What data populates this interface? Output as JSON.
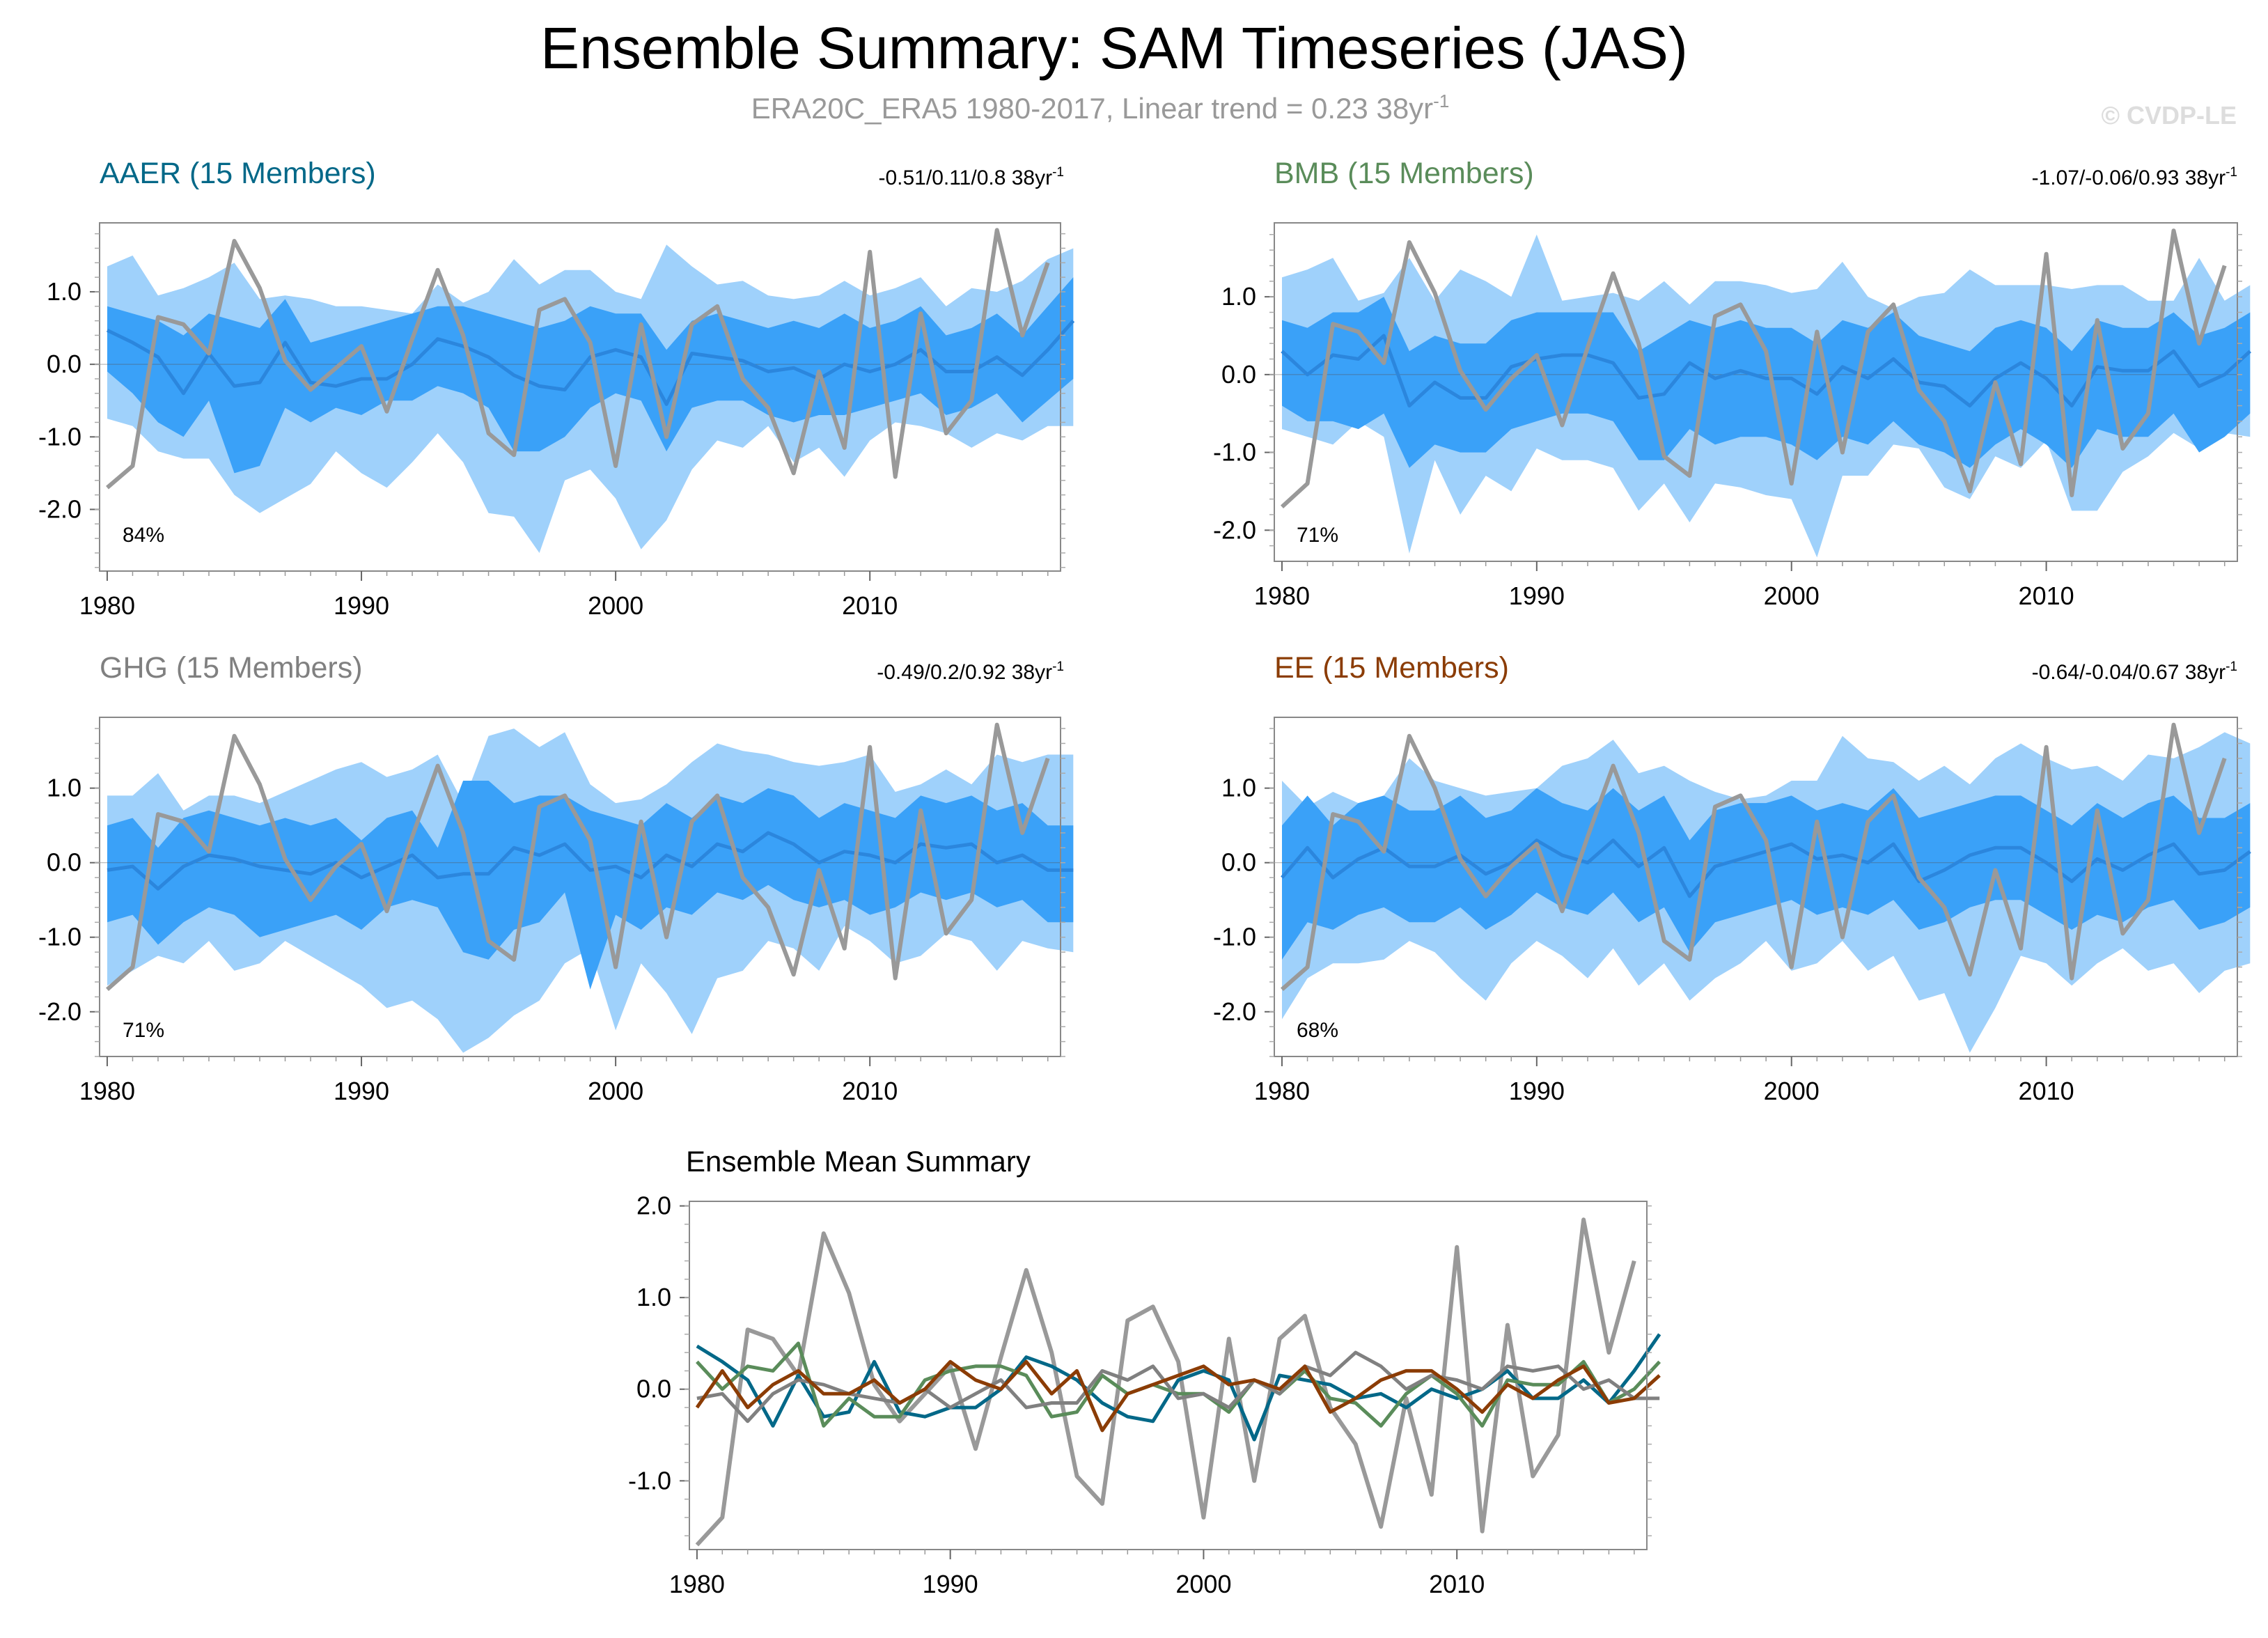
{
  "title": "Ensemble Summary: SAM Timeseries (JAS)",
  "subtitle": "ERA20C_ERA5 1980-2017, Linear trend = 0.23 38yr",
  "subtitle_sup": "-1",
  "watermark": "© CVDP-LE",
  "colors": {
    "outer_band": "#9fd1fb",
    "inner_band": "#3aa1f8",
    "ens_mean": "#2b86dd",
    "obs": "#999999",
    "AAER": "#036888",
    "BMB": "#5a8c5a",
    "GHG": "#808080",
    "EE": "#8b3c05"
  },
  "chart_data": [
    {
      "type": "area",
      "name": "AAER",
      "title": "AAER (15 Members)",
      "trend": "-0.51/0.11/0.8 38yr",
      "trend_sup": "-1",
      "percent": "84%",
      "xlim": [
        1979.7,
        2017.5
      ],
      "ylim": [
        -2.85,
        1.95
      ],
      "xticks": [
        "1980",
        "1990",
        "2000",
        "2010"
      ],
      "yticks": [
        "1.0",
        "0.0",
        "-1.0",
        "-2.0"
      ],
      "mean": [
        0.47,
        0.3,
        0.1,
        -0.4,
        0.15,
        -0.3,
        -0.25,
        0.3,
        -0.25,
        -0.3,
        -0.2,
        -0.2,
        0.0,
        0.35,
        0.25,
        0.1,
        -0.15,
        -0.3,
        -0.35,
        0.1,
        0.2,
        0.1,
        -0.55,
        0.15,
        0.1,
        0.05,
        -0.1,
        -0.05,
        -0.2,
        0.0,
        -0.1,
        0.0,
        0.2,
        -0.1,
        -0.1,
        0.1,
        -0.15,
        0.2,
        0.6
      ],
      "inner_lo": [
        -0.1,
        -0.4,
        -0.8,
        -1.0,
        -0.5,
        -1.5,
        -1.4,
        -0.6,
        -0.8,
        -0.6,
        -0.7,
        -0.5,
        -0.5,
        -0.3,
        -0.4,
        -0.6,
        -1.2,
        -1.2,
        -1.0,
        -0.6,
        -0.4,
        -0.5,
        -1.2,
        -0.6,
        -0.5,
        -0.5,
        -0.7,
        -0.8,
        -0.7,
        -0.7,
        -0.6,
        -0.5,
        -0.4,
        -0.7,
        -0.6,
        -0.4,
        -0.8,
        -0.5,
        -0.2
      ],
      "inner_hi": [
        0.8,
        0.7,
        0.6,
        0.4,
        0.7,
        0.6,
        0.5,
        0.9,
        0.3,
        0.4,
        0.5,
        0.6,
        0.7,
        0.8,
        0.8,
        0.7,
        0.6,
        0.5,
        0.6,
        0.8,
        0.7,
        0.7,
        0.2,
        0.6,
        0.7,
        0.6,
        0.5,
        0.6,
        0.5,
        0.7,
        0.5,
        0.6,
        0.8,
        0.4,
        0.5,
        0.7,
        0.4,
        0.8,
        1.2
      ],
      "outer_lo": [
        -0.75,
        -0.85,
        -1.2,
        -1.3,
        -1.3,
        -1.8,
        -2.05,
        -1.85,
        -1.65,
        -1.2,
        -1.5,
        -1.7,
        -1.35,
        -0.95,
        -1.35,
        -2.05,
        -2.1,
        -2.6,
        -1.6,
        -1.45,
        -1.85,
        -2.55,
        -2.15,
        -1.45,
        -1.05,
        -1.15,
        -0.85,
        -1.35,
        -1.15,
        -1.55,
        -1.05,
        -0.8,
        -0.85,
        -0.95,
        -1.15,
        -0.95,
        -1.05,
        -0.85,
        -0.85
      ],
      "outer_hi": [
        1.35,
        1.5,
        0.95,
        1.05,
        1.2,
        1.4,
        0.9,
        0.95,
        0.9,
        0.8,
        0.8,
        0.75,
        0.7,
        1.1,
        0.85,
        1.0,
        1.45,
        1.1,
        1.3,
        1.3,
        1.0,
        0.9,
        1.65,
        1.35,
        1.1,
        1.15,
        0.95,
        0.9,
        0.95,
        1.15,
        0.95,
        1.05,
        1.2,
        0.8,
        1.05,
        1.0,
        1.15,
        1.45,
        1.6
      ],
      "obs": [
        -1.7,
        -1.4,
        0.65,
        0.55,
        0.15,
        1.7,
        1.05,
        0.05,
        -0.35,
        -0.05,
        0.25,
        -0.65,
        0.35,
        1.3,
        0.4,
        -0.95,
        -1.25,
        0.75,
        0.9,
        0.3,
        -1.4,
        0.55,
        -1.0,
        0.55,
        0.8,
        -0.2,
        -0.6,
        -1.5,
        -0.1,
        -1.15,
        1.55,
        -1.55,
        0.7,
        -0.95,
        -0.5,
        1.85,
        0.4,
        1.4
      ]
    },
    {
      "type": "area",
      "name": "BMB",
      "title": "BMB (15 Members)",
      "trend": "-1.07/-0.06/0.93 38yr",
      "trend_sup": "-1",
      "percent": "71%",
      "xlim": [
        1979.7,
        2017.5
      ],
      "ylim": [
        -2.4,
        1.95
      ],
      "xticks": [
        "1980",
        "1990",
        "2000",
        "2010"
      ],
      "yticks": [
        "1.0",
        "0.0",
        "-1.0",
        "-2.0"
      ],
      "mean": [
        0.3,
        0.0,
        0.25,
        0.2,
        0.5,
        -0.4,
        -0.1,
        -0.3,
        -0.3,
        0.1,
        0.2,
        0.25,
        0.25,
        0.15,
        -0.3,
        -0.25,
        0.15,
        -0.05,
        0.05,
        -0.05,
        -0.05,
        -0.25,
        0.1,
        -0.05,
        0.2,
        -0.1,
        -0.15,
        -0.4,
        -0.05,
        0.15,
        -0.05,
        -0.4,
        0.1,
        0.05,
        0.05,
        0.3,
        -0.15,
        0.0,
        0.3
      ],
      "inner_lo": [
        -0.4,
        -0.6,
        -0.6,
        -0.7,
        -0.5,
        -1.2,
        -0.9,
        -1.0,
        -1.0,
        -0.7,
        -0.6,
        -0.5,
        -0.5,
        -0.6,
        -1.1,
        -1.1,
        -0.7,
        -0.9,
        -0.8,
        -0.8,
        -0.9,
        -1.1,
        -0.8,
        -0.9,
        -0.6,
        -0.9,
        -1.0,
        -1.2,
        -0.9,
        -0.7,
        -0.9,
        -1.2,
        -0.7,
        -0.8,
        -0.8,
        -0.5,
        -1.0,
        -0.8,
        -0.5
      ],
      "inner_hi": [
        0.7,
        0.6,
        0.8,
        0.8,
        1.0,
        0.3,
        0.5,
        0.4,
        0.4,
        0.7,
        0.8,
        0.8,
        0.8,
        0.8,
        0.3,
        0.5,
        0.7,
        0.6,
        0.7,
        0.6,
        0.6,
        0.4,
        0.7,
        0.6,
        0.8,
        0.5,
        0.4,
        0.3,
        0.6,
        0.7,
        0.6,
        0.3,
        0.7,
        0.6,
        0.6,
        0.8,
        0.5,
        0.6,
        0.8
      ],
      "outer_lo": [
        -0.7,
        -0.8,
        -0.9,
        -0.6,
        -0.8,
        -2.3,
        -1.1,
        -1.8,
        -1.3,
        -1.5,
        -0.95,
        -1.1,
        -1.1,
        -1.2,
        -1.75,
        -1.4,
        -1.9,
        -1.4,
        -1.45,
        -1.55,
        -1.6,
        -2.35,
        -1.3,
        -1.3,
        -0.9,
        -0.95,
        -1.45,
        -1.6,
        -1.05,
        -1.2,
        -0.85,
        -1.75,
        -1.75,
        -1.25,
        -1.05,
        -0.75,
        -0.95,
        -0.75,
        -0.8
      ],
      "outer_hi": [
        1.25,
        1.35,
        1.5,
        0.95,
        1.05,
        1.5,
        0.95,
        1.35,
        1.2,
        1.0,
        1.8,
        0.95,
        1.0,
        1.05,
        0.95,
        1.2,
        0.9,
        1.2,
        1.2,
        1.15,
        1.05,
        1.1,
        1.45,
        1.0,
        0.85,
        1.0,
        1.05,
        1.35,
        1.15,
        1.15,
        1.15,
        1.1,
        1.15,
        1.15,
        0.95,
        0.95,
        1.5,
        0.95,
        1.15
      ],
      "obs": [
        -1.7,
        -1.4,
        0.65,
        0.55,
        0.15,
        1.7,
        1.05,
        0.05,
        -0.45,
        -0.05,
        0.25,
        -0.65,
        0.35,
        1.3,
        0.4,
        -1.05,
        -1.3,
        0.75,
        0.9,
        0.3,
        -1.4,
        0.55,
        -1.0,
        0.55,
        0.9,
        -0.2,
        -0.6,
        -1.5,
        -0.1,
        -1.15,
        1.55,
        -1.55,
        0.7,
        -0.95,
        -0.5,
        1.85,
        0.4,
        1.4
      ]
    },
    {
      "type": "area",
      "name": "GHG",
      "title": "GHG (15 Members)",
      "trend": "-0.49/0.2/0.92 38yr",
      "trend_sup": "-1",
      "percent": "71%",
      "xlim": [
        1979.7,
        2017.5
      ],
      "ylim": [
        -2.6,
        1.95
      ],
      "xticks": [
        "1980",
        "1990",
        "2000",
        "2010"
      ],
      "yticks": [
        "1.0",
        "0.0",
        "-1.0",
        "-2.0"
      ],
      "mean": [
        -0.1,
        -0.05,
        -0.35,
        -0.05,
        0.1,
        0.05,
        -0.05,
        -0.1,
        -0.15,
        0.0,
        -0.2,
        -0.05,
        0.1,
        -0.2,
        -0.15,
        -0.15,
        0.2,
        0.1,
        0.25,
        -0.1,
        -0.05,
        -0.2,
        0.1,
        -0.05,
        0.25,
        0.15,
        0.4,
        0.25,
        0.0,
        0.15,
        0.1,
        0.0,
        0.25,
        0.2,
        0.25,
        0.0,
        0.1,
        -0.1,
        -0.1
      ],
      "inner_lo": [
        -0.8,
        -0.7,
        -1.1,
        -0.8,
        -0.6,
        -0.7,
        -1.0,
        -0.9,
        -0.8,
        -0.7,
        -0.9,
        -0.6,
        -0.5,
        -0.6,
        -1.2,
        -1.3,
        -0.9,
        -0.8,
        -0.4,
        -1.7,
        -0.7,
        -0.9,
        -0.6,
        -0.7,
        -0.4,
        -0.5,
        -0.3,
        -0.5,
        -0.6,
        -0.5,
        -0.7,
        -0.6,
        -0.4,
        -0.5,
        -0.4,
        -0.6,
        -0.5,
        -0.8,
        -0.8
      ],
      "inner_hi": [
        0.5,
        0.6,
        0.2,
        0.6,
        0.7,
        0.6,
        0.5,
        0.6,
        0.5,
        0.6,
        0.3,
        0.6,
        0.7,
        0.2,
        1.1,
        1.1,
        0.8,
        0.9,
        0.9,
        0.7,
        0.6,
        0.5,
        0.8,
        0.6,
        0.9,
        0.8,
        1.0,
        0.9,
        0.6,
        0.8,
        0.7,
        0.6,
        0.9,
        0.8,
        0.9,
        0.7,
        0.8,
        0.5,
        0.5
      ],
      "outer_lo": [
        -1.65,
        -1.45,
        -1.25,
        -1.35,
        -1.05,
        -1.45,
        -1.35,
        -1.05,
        -1.25,
        -1.45,
        -1.65,
        -1.95,
        -1.85,
        -2.1,
        -2.55,
        -2.35,
        -2.05,
        -1.85,
        -1.35,
        -1.15,
        -2.25,
        -1.35,
        -1.75,
        -2.3,
        -1.55,
        -1.45,
        -1.05,
        -1.15,
        -1.45,
        -0.85,
        -1.05,
        -1.35,
        -1.25,
        -0.95,
        -1.05,
        -1.45,
        -1.05,
        -1.15,
        -1.2
      ],
      "outer_hi": [
        0.9,
        0.9,
        1.2,
        0.7,
        0.9,
        0.9,
        0.8,
        0.95,
        1.1,
        1.25,
        1.35,
        1.15,
        1.25,
        1.45,
        0.8,
        1.7,
        1.8,
        1.55,
        1.75,
        1.05,
        0.8,
        0.85,
        1.05,
        1.35,
        1.6,
        1.5,
        1.45,
        1.35,
        1.3,
        1.35,
        1.45,
        0.95,
        1.05,
        1.25,
        1.05,
        1.45,
        1.35,
        1.45,
        1.45
      ],
      "obs": [
        -1.7,
        -1.4,
        0.65,
        0.55,
        0.15,
        1.7,
        1.05,
        0.05,
        -0.5,
        -0.05,
        0.25,
        -0.65,
        0.35,
        1.3,
        0.4,
        -1.05,
        -1.3,
        0.75,
        0.9,
        0.3,
        -1.4,
        0.55,
        -1.0,
        0.55,
        0.9,
        -0.2,
        -0.6,
        -1.5,
        -0.1,
        -1.15,
        1.55,
        -1.55,
        0.7,
        -0.95,
        -0.5,
        1.85,
        0.4,
        1.4
      ]
    },
    {
      "type": "area",
      "name": "EE",
      "title": "EE (15 Members)",
      "trend": "-0.64/-0.04/0.67 38yr",
      "trend_sup": "-1",
      "percent": "68%",
      "xlim": [
        1979.7,
        2017.5
      ],
      "ylim": [
        -2.6,
        1.95
      ],
      "xticks": [
        "1980",
        "1990",
        "2000",
        "2010"
      ],
      "yticks": [
        "1.0",
        "0.0",
        "-1.0",
        "-2.0"
      ],
      "mean": [
        -0.2,
        0.2,
        -0.2,
        0.05,
        0.2,
        -0.05,
        -0.05,
        0.1,
        -0.15,
        0.0,
        0.3,
        0.1,
        0.0,
        0.3,
        -0.05,
        0.2,
        -0.45,
        -0.05,
        0.05,
        0.15,
        0.25,
        0.05,
        0.1,
        0.0,
        0.25,
        -0.25,
        -0.1,
        0.1,
        0.2,
        0.2,
        0.0,
        -0.25,
        0.05,
        -0.1,
        0.1,
        0.25,
        -0.15,
        -0.1,
        0.15
      ],
      "inner_lo": [
        -1.3,
        -0.8,
        -0.9,
        -0.7,
        -0.6,
        -0.8,
        -0.8,
        -0.6,
        -0.9,
        -0.7,
        -0.4,
        -0.6,
        -0.7,
        -0.4,
        -0.8,
        -0.6,
        -1.2,
        -0.8,
        -0.7,
        -0.6,
        -0.5,
        -0.7,
        -0.6,
        -0.7,
        -0.5,
        -0.9,
        -0.8,
        -0.6,
        -0.5,
        -0.5,
        -0.7,
        -0.9,
        -0.7,
        -0.8,
        -0.6,
        -0.5,
        -0.9,
        -0.8,
        -0.6
      ],
      "inner_hi": [
        0.5,
        0.9,
        0.5,
        0.8,
        0.9,
        0.7,
        0.7,
        0.9,
        0.6,
        0.7,
        1.0,
        0.8,
        0.7,
        1.0,
        0.7,
        0.9,
        0.3,
        0.7,
        0.8,
        0.8,
        0.9,
        0.7,
        0.8,
        0.7,
        1.0,
        0.6,
        0.7,
        0.8,
        0.9,
        0.9,
        0.7,
        0.5,
        0.8,
        0.6,
        0.8,
        0.9,
        0.6,
        0.6,
        0.8
      ],
      "outer_lo": [
        -2.1,
        -1.55,
        -1.35,
        -1.35,
        -1.3,
        -1.05,
        -1.2,
        -1.55,
        -1.85,
        -1.35,
        -1.05,
        -1.25,
        -1.55,
        -1.15,
        -1.65,
        -1.35,
        -1.85,
        -1.55,
        -1.35,
        -1.05,
        -1.45,
        -1.35,
        -1.05,
        -1.45,
        -1.25,
        -1.85,
        -1.75,
        -2.55,
        -1.95,
        -1.25,
        -1.35,
        -1.65,
        -1.35,
        -1.15,
        -1.45,
        -1.35,
        -1.75,
        -1.45,
        -1.35
      ],
      "outer_hi": [
        1.1,
        0.75,
        0.95,
        0.8,
        0.9,
        1.4,
        1.1,
        1.0,
        0.9,
        0.95,
        1.0,
        1.3,
        1.4,
        1.65,
        1.2,
        1.3,
        1.1,
        0.95,
        0.85,
        0.9,
        1.1,
        1.1,
        1.7,
        1.4,
        1.35,
        1.1,
        1.3,
        1.05,
        1.4,
        1.6,
        1.4,
        1.25,
        1.3,
        1.1,
        1.45,
        1.4,
        1.55,
        1.75,
        1.6
      ],
      "obs": [
        -1.7,
        -1.4,
        0.65,
        0.55,
        0.15,
        1.7,
        1.0,
        0.05,
        -0.45,
        -0.05,
        0.25,
        -0.65,
        0.35,
        1.3,
        0.4,
        -1.05,
        -1.3,
        0.75,
        0.9,
        0.3,
        -1.4,
        0.55,
        -1.0,
        0.55,
        0.9,
        -0.2,
        -0.6,
        -1.5,
        -0.1,
        -1.15,
        1.55,
        -1.55,
        0.7,
        -0.95,
        -0.5,
        1.85,
        0.4,
        1.4
      ]
    },
    {
      "type": "line",
      "name": "summary",
      "title": "Ensemble Mean Summary",
      "xlim": [
        1979.7,
        2017.5
      ],
      "ylim": [
        -1.75,
        2.05
      ],
      "xticks": [
        "1980",
        "1990",
        "2000",
        "2010"
      ],
      "yticks": [
        "2.0",
        "1.0",
        "0.0",
        "-1.0"
      ]
    }
  ]
}
